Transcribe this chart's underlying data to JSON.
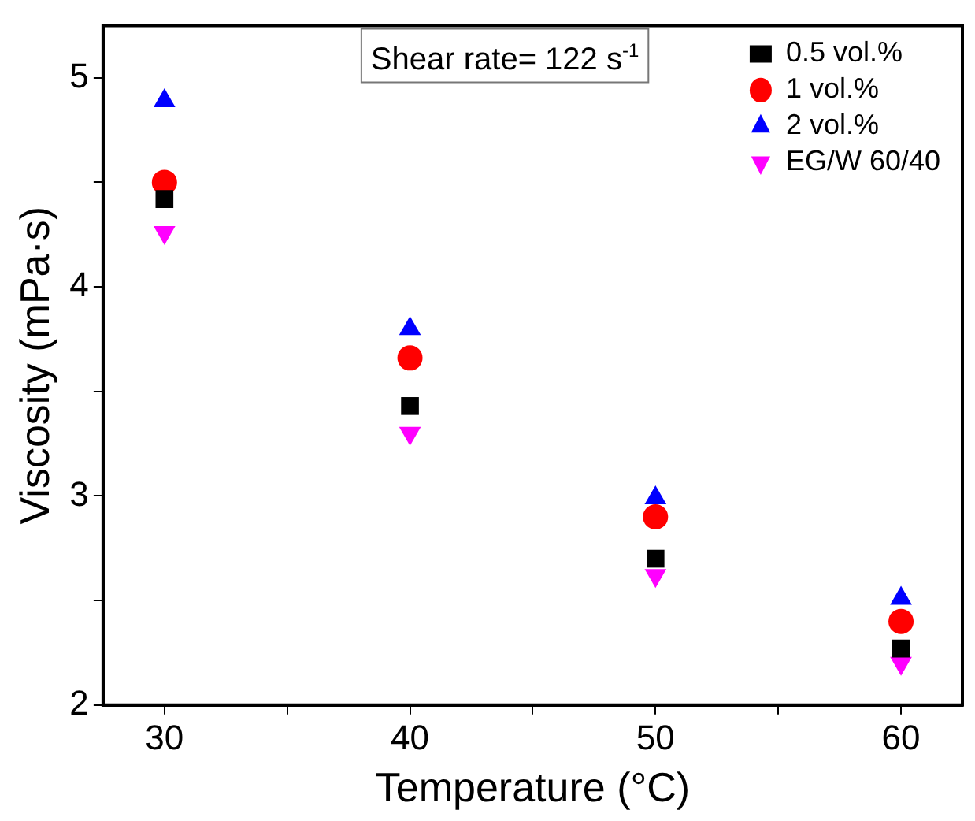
{
  "chart_data": {
    "type": "scatter",
    "xlabel": "Temperature (°C)",
    "ylabel": "Viscosity (mPa·s)",
    "annotations": [
      "Shear rate= 122 s$^{-1}$"
    ],
    "x": [
      30,
      40,
      50,
      60
    ],
    "series": [
      {
        "name": "0.5 vol.%",
        "color": "#000000",
        "marker": "square",
        "values": [
          4.42,
          3.43,
          2.7,
          2.27
        ]
      },
      {
        "name": "1 vol.%",
        "color": "#ff0000",
        "marker": "circle",
        "values": [
          4.5,
          3.66,
          2.9,
          2.4
        ]
      },
      {
        "name": "2 vol.%",
        "color": "#0000ff",
        "marker": "triangle",
        "values": [
          4.89,
          3.8,
          2.99,
          2.51
        ]
      },
      {
        "name": "EG/W 60/40",
        "color": "#ff00ff",
        "marker": "triangle-down",
        "values": [
          4.26,
          3.3,
          2.62,
          2.2
        ]
      }
    ],
    "xlim": [
      27.5,
      62.5
    ],
    "xticks": [
      30,
      {
        "value": 35,
        "label": null
      },
      40,
      {
        "value": 45,
        "label": null
      },
      50,
      {
        "value": 55,
        "label": null
      },
      60
    ],
    "ylim": [
      2,
      5.25
    ],
    "yticks": [
      2,
      {
        "value": 2.5,
        "label": null
      },
      3,
      {
        "value": 3.5,
        "label": null
      },
      4,
      {
        "value": 4.5,
        "label": null
      },
      5
    ],
    "grid": false,
    "legend": "top right"
  }
}
